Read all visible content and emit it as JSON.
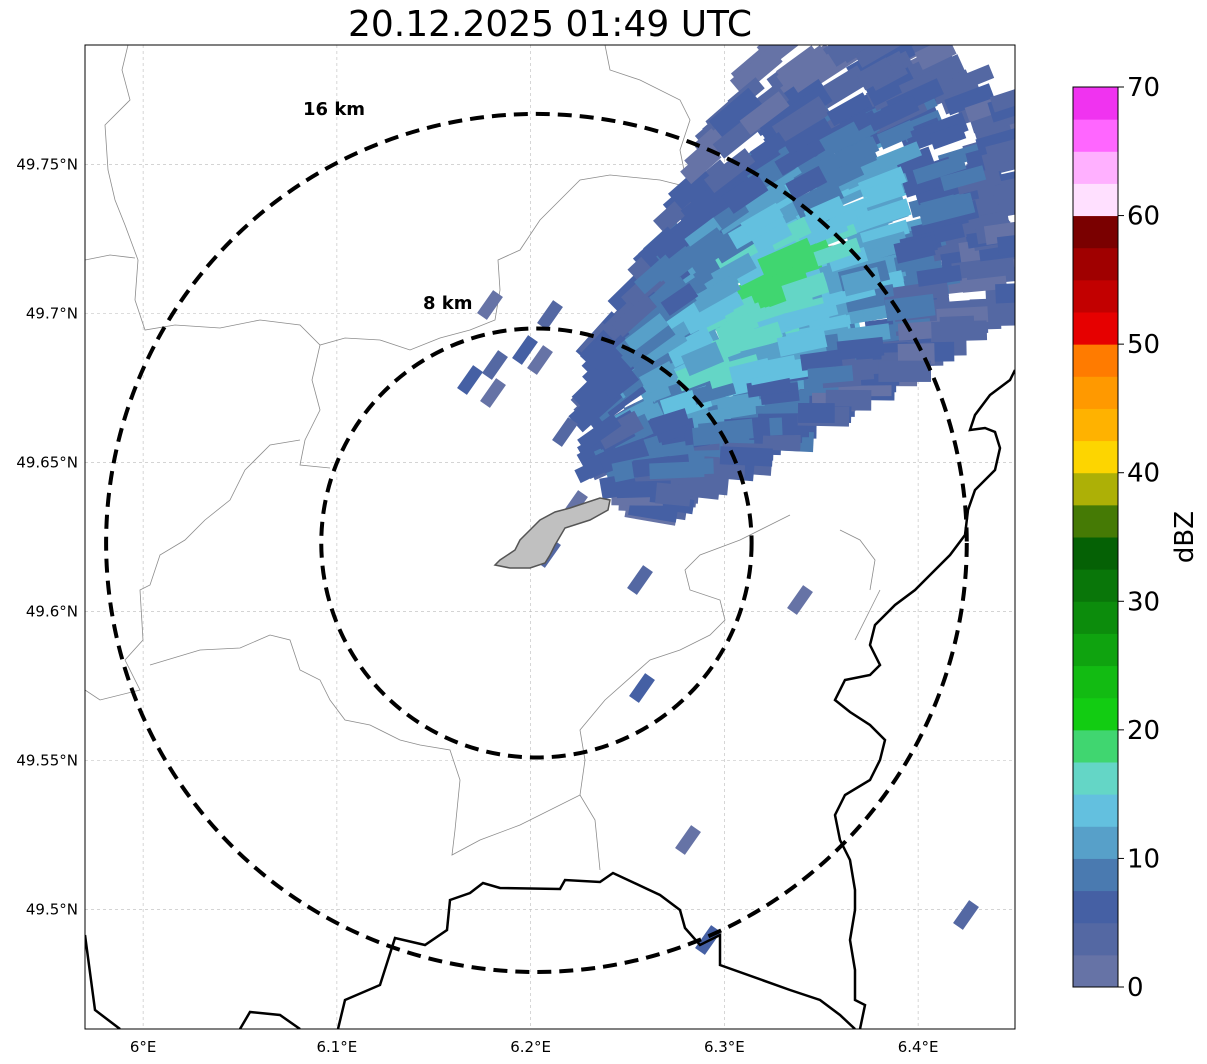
{
  "title": "20.12.2025 01:49 UTC",
  "map": {
    "lon_range": [
      5.97,
      6.45
    ],
    "lat_range": [
      49.46,
      49.79
    ],
    "lon_ticks": [
      {
        "value": 6.0,
        "label": "6°E"
      },
      {
        "value": 6.1,
        "label": "6.1°E"
      },
      {
        "value": 6.2,
        "label": "6.2°E"
      },
      {
        "value": 6.3,
        "label": "6.3°E"
      },
      {
        "value": 6.4,
        "label": "6.4°E"
      }
    ],
    "lat_ticks": [
      {
        "value": 49.75,
        "label": "49.75°N"
      },
      {
        "value": 49.7,
        "label": "49.7°N"
      },
      {
        "value": 49.65,
        "label": "49.65°N"
      },
      {
        "value": 49.6,
        "label": "49.6°N"
      },
      {
        "value": 49.55,
        "label": "49.55°N"
      },
      {
        "value": 49.5,
        "label": "49.5°N"
      }
    ],
    "gridlines": true,
    "radar_center": {
      "lon": 6.203,
      "lat": 49.623
    },
    "range_rings": [
      {
        "label": "8 km",
        "radius_km": 8
      },
      {
        "label": "16 km",
        "radius_km": 16
      }
    ],
    "ring_style": "dashed black",
    "border_color": "#000000",
    "boundary_color": "#8c8c8c",
    "city_fill": "#c0c0c0"
  },
  "colorbar": {
    "label": "dBZ",
    "min": 0,
    "max": 70,
    "ticks": [
      "0",
      "10",
      "20",
      "30",
      "40",
      "50",
      "60",
      "70"
    ],
    "colors": [
      "#6673a6",
      "#5468a3",
      "#4560a4",
      "#4a7ab0",
      "#57a0c9",
      "#63c0df",
      "#64d6c6",
      "#40d670",
      "#12cc12",
      "#12bb12",
      "#0fa30f",
      "#0c8c0c",
      "#097609",
      "#056105",
      "#457a05",
      "#adb006",
      "#fdd500",
      "#ffb200",
      "#ff9900",
      "#ff7b00",
      "#e60000",
      "#c20000",
      "#a00000",
      "#7a0000",
      "#ffe0ff",
      "#ffb0ff",
      "#ff66ff",
      "#f033f0"
    ]
  }
}
